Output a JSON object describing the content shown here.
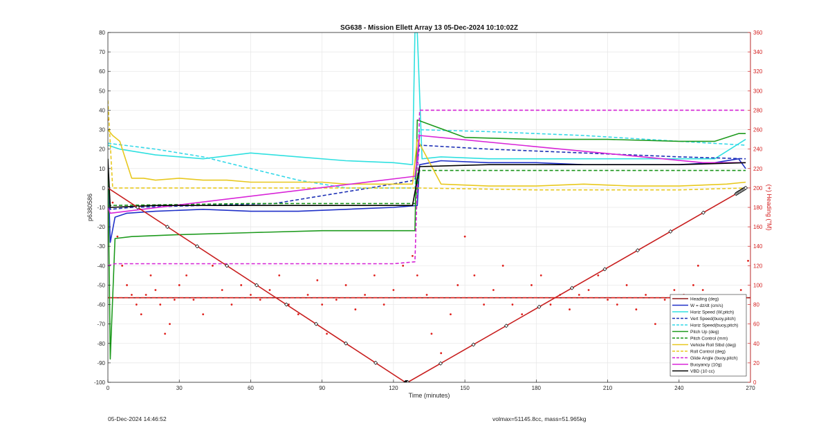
{
  "footer": {
    "left": "05-Dec-2024 14:46:52",
    "right": "volmax=51145.8cc, mass=51.965kg"
  },
  "chart_data": {
    "type": "line",
    "title": "SG638 - Mission Ellett Array 13 05-Dec-2024 10:10:02Z",
    "xlabel": "Time (minutes)",
    "ylabel": "p6380586",
    "y2label": "(+) Heading (°M)",
    "xlim": [
      0,
      270
    ],
    "ylim": [
      -100,
      80
    ],
    "y2lim": [
      0,
      360
    ],
    "xticks": [
      0,
      30,
      60,
      90,
      120,
      150,
      180,
      210,
      240,
      270
    ],
    "yticks": [
      -100,
      -90,
      -80,
      -70,
      -60,
      -50,
      -40,
      -30,
      -20,
      -10,
      0,
      10,
      20,
      30,
      40,
      50,
      60,
      70,
      80
    ],
    "y2ticks": [
      0,
      20,
      40,
      60,
      80,
      100,
      120,
      140,
      160,
      180,
      200,
      220,
      240,
      260,
      280,
      300,
      320,
      340,
      360
    ],
    "grid": true,
    "legend_position": "bottom-right",
    "series": [
      {
        "name": "Heading (deg)",
        "color": "#8b1a1a",
        "style": "solid",
        "axis": "right",
        "x": [
          0,
          270
        ],
        "y": [
          87,
          87
        ]
      },
      {
        "name": "Heading (deg)",
        "color": "#e0201c",
        "style": "dashed",
        "axis": "right",
        "x": [
          0,
          270
        ],
        "y": [
          87,
          87
        ]
      },
      {
        "name": "Heading (deg)",
        "color": "#e0201c",
        "style": "dotted",
        "axis": "right",
        "x": [
          0,
          2,
          4,
          6,
          8,
          10,
          12,
          14,
          16,
          18,
          20,
          22,
          24,
          26,
          28,
          30,
          33,
          36,
          40,
          44,
          48,
          52,
          56,
          60,
          64,
          68,
          72,
          76,
          80,
          84,
          88,
          90,
          92,
          96,
          100,
          104,
          108,
          112,
          116,
          120,
          124,
          128,
          130,
          134,
          136,
          140,
          144,
          147,
          150,
          154,
          158,
          162,
          166,
          170,
          174,
          178,
          182,
          186,
          190,
          194,
          198,
          202,
          206,
          210,
          214,
          218,
          222,
          226,
          230,
          234,
          238,
          242,
          244,
          246,
          248,
          250,
          254,
          258,
          262,
          266,
          269
        ],
        "y": [
          270,
          185,
          150,
          120,
          100,
          90,
          80,
          70,
          90,
          110,
          95,
          80,
          50,
          60,
          85,
          100,
          110,
          85,
          70,
          120,
          95,
          80,
          100,
          90,
          85,
          95,
          110,
          80,
          70,
          90,
          105,
          80,
          50,
          85,
          100,
          75,
          90,
          110,
          80,
          95,
          120,
          130,
          110,
          90,
          50,
          30,
          70,
          100,
          150,
          110,
          80,
          95,
          120,
          80,
          70,
          100,
          110,
          80,
          90,
          75,
          90,
          95,
          110,
          85,
          80,
          100,
          75,
          90,
          60,
          85,
          95,
          90,
          70,
          100,
          120,
          95,
          80,
          60,
          80,
          95,
          125
        ]
      },
      {
        "name": "W = dz/dt (cm/s)",
        "color": "#1e2fc8",
        "style": "solid",
        "axis": "left",
        "x": [
          0,
          1,
          3,
          8,
          20,
          40,
          60,
          80,
          100,
          120,
          130,
          131,
          140,
          160,
          180,
          200,
          220,
          240,
          255,
          265,
          268
        ],
        "y": [
          12,
          -28,
          -15,
          -13,
          -12,
          -11,
          -12,
          -12,
          -11,
          -10,
          -9,
          12,
          14,
          13,
          13,
          12,
          12,
          12,
          13,
          15,
          10
        ]
      },
      {
        "name": "Horiz Speed (W,pitch)",
        "color": "#2fe0e0",
        "style": "solid",
        "axis": "left",
        "x": [
          0,
          5,
          20,
          40,
          60,
          80,
          100,
          120,
          128,
          129,
          130,
          132,
          140,
          160,
          180,
          200,
          220,
          240,
          255,
          268
        ],
        "y": [
          22,
          20,
          17,
          15,
          18,
          16,
          14,
          13,
          12,
          80,
          80,
          15,
          16,
          15,
          15,
          15,
          15,
          15,
          15,
          25
        ]
      },
      {
        "name": "Vert Speed(buoy,pitch)",
        "color": "#1c2fb5",
        "style": "dashed",
        "axis": "left",
        "x": [
          0,
          1,
          10,
          40,
          70,
          90,
          110,
          129,
          131,
          160,
          200,
          240,
          268
        ],
        "y": [
          13,
          -11,
          -10,
          -9,
          -8,
          -4,
          0,
          4,
          22,
          20,
          18,
          16,
          15
        ]
      },
      {
        "name": "Horiz Speed(buoy,pitch)",
        "color": "#34d8e8",
        "style": "dashed",
        "axis": "left",
        "x": [
          0,
          20,
          40,
          60,
          80,
          100,
          120,
          129,
          131,
          160,
          200,
          240,
          268
        ],
        "y": [
          23,
          20,
          16,
          10,
          4,
          0,
          0,
          0,
          30,
          29,
          27,
          24,
          22
        ]
      },
      {
        "name": "Pitch Up (deg)",
        "color": "#1d9a1d",
        "style": "solid",
        "axis": "left",
        "x": [
          0,
          1,
          3,
          10,
          30,
          60,
          90,
          120,
          129,
          130,
          150,
          180,
          210,
          240,
          255,
          265,
          268
        ],
        "y": [
          15,
          -88,
          -26,
          -25,
          -24,
          -23,
          -22,
          -22,
          -22,
          35,
          26,
          25,
          25,
          24,
          24,
          28,
          28
        ]
      },
      {
        "name": "Pitch Control (mm)",
        "color": "#159215",
        "style": "dashed",
        "axis": "left",
        "x": [
          0,
          1,
          60,
          129,
          131,
          180,
          240,
          268
        ],
        "y": [
          -9,
          -9,
          -8,
          -8,
          9,
          9,
          9,
          9
        ]
      },
      {
        "name": "Vehicle Roll Stbd (deg)",
        "color": "#e8c81e",
        "style": "solid",
        "axis": "left",
        "x": [
          0,
          2,
          5,
          10,
          15,
          20,
          30,
          40,
          50,
          60,
          70,
          80,
          90,
          100,
          110,
          120,
          128,
          130,
          140,
          160,
          180,
          200,
          220,
          240,
          260,
          268
        ],
        "y": [
          30,
          27,
          24,
          5,
          5,
          4,
          5,
          4,
          4,
          3,
          3,
          3,
          3,
          2,
          2,
          2,
          2,
          25,
          2,
          1,
          1,
          2,
          1,
          1,
          2,
          3
        ]
      },
      {
        "name": "Roll Control (deg)",
        "color": "#e8c81e",
        "style": "dashed",
        "axis": "left",
        "x": [
          0,
          2,
          10,
          60,
          120,
          128,
          130,
          180,
          240,
          268
        ],
        "y": [
          45,
          0,
          0,
          0,
          0,
          0,
          0,
          -1,
          -1,
          0
        ]
      },
      {
        "name": "Glide Angle (buoy,pitch)",
        "color": "#d520d5",
        "style": "dashed",
        "axis": "left",
        "x": [
          0,
          3,
          60,
          120,
          129,
          131,
          180,
          240,
          268
        ],
        "y": [
          -40,
          -39,
          -39,
          -39,
          -38,
          40,
          40,
          40,
          40
        ]
      },
      {
        "name": "Buoyancy (10g)",
        "color": "#d824d8",
        "style": "solid",
        "axis": "left",
        "x": [
          0,
          1,
          129,
          131,
          250,
          268
        ],
        "y": [
          -10,
          -13,
          6,
          27,
          13,
          13
        ]
      },
      {
        "name": "VBD (10 cc)",
        "color": "#000000",
        "style": "solid",
        "axis": "left",
        "x": [
          0,
          1,
          20,
          60,
          100,
          128,
          131,
          160,
          200,
          240,
          268
        ],
        "y": [
          15,
          -10,
          -9,
          -9,
          -9,
          -9,
          11,
          12,
          12,
          12,
          13
        ]
      },
      {
        "name": "Depth",
        "color": "#c81e1e",
        "style": "solid-markers",
        "axis": "left",
        "x": [
          0,
          125,
          126,
          264,
          268
        ],
        "y": [
          0,
          -100,
          -100,
          -3,
          0
        ]
      }
    ],
    "legend": [
      {
        "label": "Heading (deg)",
        "color": "#8b1a1a",
        "style": "solid"
      },
      {
        "label": "W = dz/dt (cm/s)",
        "color": "#1e2fc8",
        "style": "solid"
      },
      {
        "label": "Horiz Speed (W,pitch)",
        "color": "#2fe0e0",
        "style": "solid"
      },
      {
        "label": "Vert Speed(buoy,pitch)",
        "color": "#1c2fb5",
        "style": "dashed"
      },
      {
        "label": "Horiz Speed(buoy,pitch)",
        "color": "#34d8e8",
        "style": "dashed"
      },
      {
        "label": "Pitch Up (deg)",
        "color": "#1d9a1d",
        "style": "solid"
      },
      {
        "label": "Pitch Control (mm)",
        "color": "#159215",
        "style": "dashed"
      },
      {
        "label": "Vehicle Roll Stbd (deg)",
        "color": "#e8c81e",
        "style": "solid"
      },
      {
        "label": "Roll Control (deg)",
        "color": "#e8c81e",
        "style": "dashed"
      },
      {
        "label": "Glide Angle (buoy,pitch)",
        "color": "#d520d5",
        "style": "dashed"
      },
      {
        "label": "Buoyancy (10g)",
        "color": "#d824d8",
        "style": "solid"
      },
      {
        "label": "VBD (10 cc)",
        "color": "#000000",
        "style": "solid"
      }
    ]
  }
}
